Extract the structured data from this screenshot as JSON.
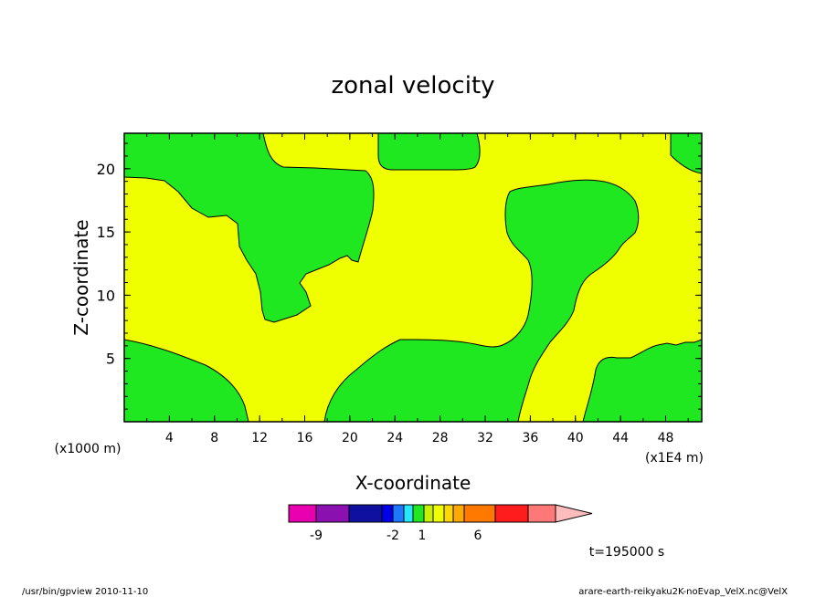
{
  "chart_data": {
    "type": "contour",
    "title": "zonal velocity",
    "xlabel": "X-coordinate",
    "ylabel": "Z-coordinate",
    "x_unit_left": "(x1000 m)",
    "x_unit_right": "(x1E4 m)",
    "xticks": [
      "4",
      "8",
      "12",
      "16",
      "20",
      "24",
      "28",
      "32",
      "36",
      "40",
      "44",
      "48"
    ],
    "yticks": [
      "5",
      "10",
      "15",
      "20"
    ],
    "xlim": [
      0,
      51.2
    ],
    "ylim": [
      0,
      22.8
    ],
    "colors": {
      "positive": "#f0ff00",
      "negative": "#20e820"
    },
    "colorbar": {
      "colors": [
        "#e800b0",
        "#8a10b0",
        "#1010a0",
        "#0000e8",
        "#1e78ff",
        "#28e8ff",
        "#20e820",
        "#c8f000",
        "#f0ff00",
        "#ffd800",
        "#ffaa00",
        "#ff7800",
        "#ff1c1c",
        "#ff7878",
        "#ffbcbc"
      ],
      "labels": [
        "-9",
        "-2",
        "1",
        "6"
      ]
    },
    "time_label": "t=195000 s",
    "footer_left": "/usr/bin/gpview   2010-11-10",
    "footer_right": "arare-earth-reikyaku2K-noEvap_VelX.nc@VelX"
  }
}
